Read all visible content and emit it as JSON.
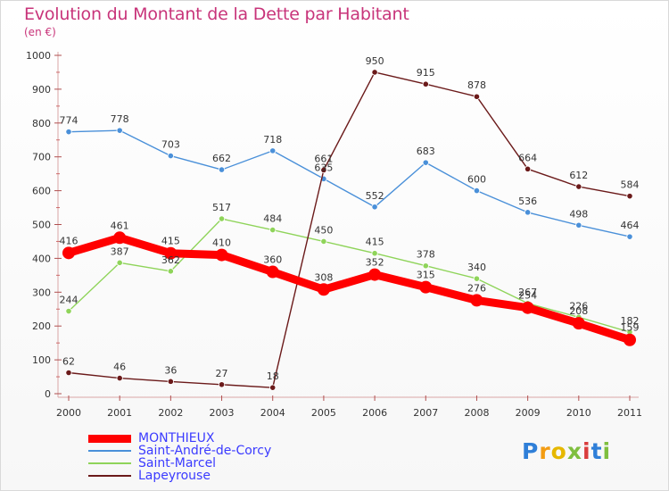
{
  "chart_data": {
    "type": "line",
    "title": "Evolution du Montant de la Dette par Habitant",
    "subtitle": "(en €)",
    "x": [
      "2000",
      "2001",
      "2002",
      "2003",
      "2004",
      "2005",
      "2006",
      "2007",
      "2008",
      "2009",
      "2010",
      "2011"
    ],
    "ylim": [
      0,
      1000
    ],
    "yticks": [
      0,
      100,
      200,
      300,
      400,
      500,
      600,
      700,
      800,
      900,
      1000
    ],
    "grid": false,
    "legend_position": "bottom-left",
    "series": [
      {
        "name": "MONTHIEUX",
        "color": "#ff0000",
        "values": [
          416,
          461,
          415,
          410,
          360,
          308,
          352,
          315,
          276,
          254,
          208,
          159
        ]
      },
      {
        "name": "Saint-André-de-Corcy",
        "color": "#4a90d9",
        "values": [
          774,
          778,
          703,
          662,
          718,
          635,
          552,
          683,
          600,
          536,
          498,
          464
        ]
      },
      {
        "name": "Saint-Marcel",
        "color": "#8fd45a",
        "values": [
          244,
          387,
          362,
          517,
          484,
          450,
          415,
          378,
          340,
          267,
          226,
          182
        ]
      },
      {
        "name": "Lapeyrouse",
        "color": "#6b1a1a",
        "values": [
          62,
          46,
          36,
          27,
          18,
          661,
          950,
          915,
          878,
          664,
          612,
          584
        ]
      }
    ]
  },
  "logo": {
    "text": "Proxiti",
    "letters": [
      {
        "ch": "P",
        "color": "#2f7fd8"
      },
      {
        "ch": "r",
        "color": "#f39c12"
      },
      {
        "ch": "o",
        "color": "#e6b800"
      },
      {
        "ch": "x",
        "color": "#7fbf3f"
      },
      {
        "ch": "i",
        "color": "#d93d3d"
      },
      {
        "ch": "t",
        "color": "#2f7fd8"
      },
      {
        "ch": "i",
        "color": "#7fbf3f"
      }
    ]
  }
}
